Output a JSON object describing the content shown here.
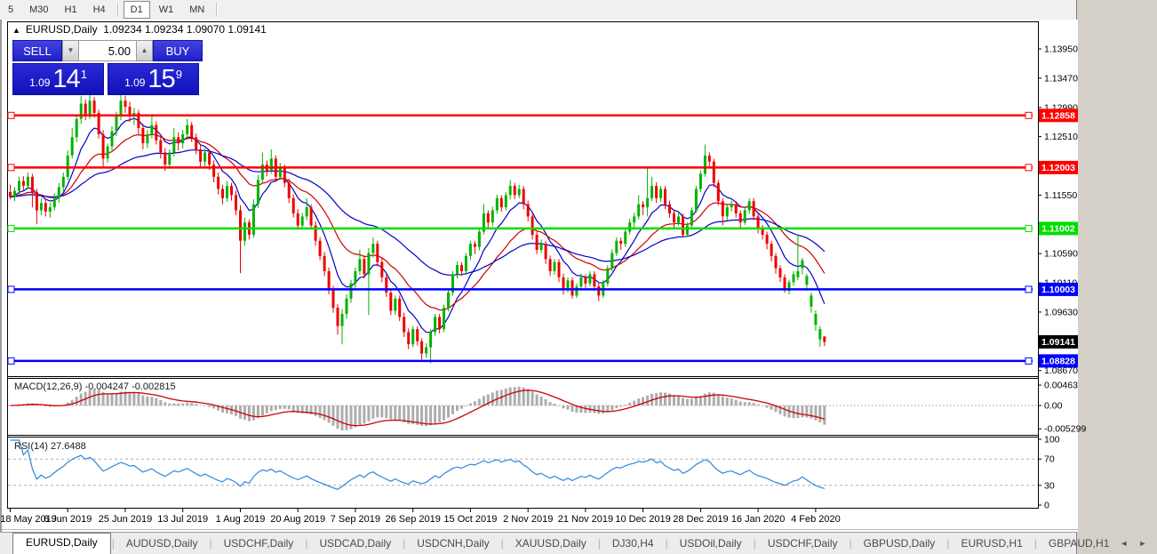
{
  "toolbar": {
    "timeframes": [
      "5",
      "M30",
      "H1",
      "H4",
      "D1",
      "W1",
      "MN"
    ],
    "active": "D1"
  },
  "window": {
    "collapse_glyph": "▲",
    "symbol_title": "EURUSD,Daily",
    "ohlc_text": "1.09234 1.09234 1.09070 1.09141"
  },
  "trade_panel": {
    "sell_label": "SELL",
    "buy_label": "BUY",
    "volume": "5.00",
    "spin_down_glyph": "▼",
    "spin_up_glyph": "▲",
    "sell_price": {
      "prefix": "1.09",
      "big": "14",
      "sup": "1"
    },
    "buy_price": {
      "prefix": "1.09",
      "big": "15",
      "sup": "9"
    }
  },
  "chart_data": {
    "type": "candlestick",
    "symbol": "EURUSD",
    "timeframe": "Daily",
    "colors": {
      "bull": "#00b300",
      "bear": "#ee0000",
      "wick_bull": "#00b300",
      "wick_bear": "#ee0000",
      "ma_fast": "#0000c8",
      "ma_mid": "#cc0000",
      "ma_slow": "#0000c8",
      "macd_hist": "#adadad",
      "macd_signal": "#d00000",
      "rsi_line": "#2e86e0",
      "level_dash": "#b0b0b0",
      "axis_line": "#000000"
    },
    "x_labels": [
      "18 May 2019",
      "6 Jun 2019",
      "25 Jun 2019",
      "13 Jul 2019",
      "1 Aug 2019",
      "20 Aug 2019",
      "7 Sep 2019",
      "26 Sep 2019",
      "15 Oct 2019",
      "2 Nov 2019",
      "21 Nov 2019",
      "10 Dec 2019",
      "28 Dec 2019",
      "16 Jan 2020",
      "4 Feb 2020"
    ],
    "x_label_indices": [
      0,
      13,
      26,
      39,
      52,
      65,
      78,
      91,
      104,
      117,
      130,
      143,
      156,
      169,
      182
    ],
    "y_ticks": [
      {
        "p": 1.1395,
        "t": "1.13950"
      },
      {
        "p": 1.1347,
        "t": "1.13470"
      },
      {
        "p": 1.1299,
        "t": "1.12990"
      },
      {
        "p": 1.1251,
        "t": "1.12510"
      },
      {
        "p": 1.1155,
        "t": "1.11550"
      },
      {
        "p": 1.1059,
        "t": "1.10590"
      },
      {
        "p": 1.1011,
        "t": "1.10110"
      },
      {
        "p": 1.0963,
        "t": "1.09630"
      },
      {
        "p": 1.0867,
        "t": "1.08670"
      }
    ],
    "levels": [
      {
        "price": 1.12858,
        "label": "1.12858",
        "color": "#ff0000"
      },
      {
        "price": 1.12003,
        "label": "1.12003",
        "color": "#ff0000"
      },
      {
        "price": 1.11002,
        "label": "1.11002",
        "color": "#00dd00"
      },
      {
        "price": 1.10003,
        "label": "1.10003",
        "color": "#0000ff"
      },
      {
        "price": 1.08828,
        "label": "1.08828",
        "color": "#0000ff"
      }
    ],
    "current_price": {
      "price": 1.09141,
      "label": "1.09141",
      "bg": "#000000"
    },
    "indicators": {
      "mas": [
        {
          "period": 8,
          "color": "#0000c8"
        },
        {
          "period": 20,
          "color": "#cc0000"
        },
        {
          "period": 45,
          "color": "#0000c8"
        }
      ],
      "macd": {
        "label": "MACD(12,26,9)",
        "values_text": "-0.004247 -0.002815",
        "fast": 12,
        "slow": 26,
        "signal": 9,
        "y_ticks": [
          {
            "v": 0.00463,
            "t": "0.00463"
          },
          {
            "v": 0.0,
            "t": "0.00"
          },
          {
            "v": -0.005299,
            "t": "-0.005299"
          }
        ]
      },
      "rsi": {
        "label": "RSI(14)",
        "value_text": "27.6488",
        "period": 14,
        "levels": [
          70,
          30
        ],
        "y_ticks": [
          {
            "v": 100,
            "t": "100"
          },
          {
            "v": 70,
            "t": "70"
          },
          {
            "v": 30,
            "t": "30"
          },
          {
            "v": 0,
            "t": "0"
          }
        ]
      }
    },
    "candles": [
      [
        1.116,
        1.1172,
        1.1148,
        1.1152
      ],
      [
        1.1152,
        1.1168,
        1.1145,
        1.1162
      ],
      [
        1.1162,
        1.1185,
        1.1155,
        1.1178
      ],
      [
        1.1178,
        1.1186,
        1.1162,
        1.117
      ],
      [
        1.117,
        1.1192,
        1.1165,
        1.1185
      ],
      [
        1.1185,
        1.119,
        1.1135,
        1.116
      ],
      [
        1.116,
        1.1165,
        1.1107,
        1.113
      ],
      [
        1.113,
        1.115,
        1.1122,
        1.1142
      ],
      [
        1.1142,
        1.1148,
        1.112,
        1.1128
      ],
      [
        1.1128,
        1.1142,
        1.1118,
        1.1135
      ],
      [
        1.1135,
        1.1158,
        1.113,
        1.115
      ],
      [
        1.115,
        1.1175,
        1.1142,
        1.1168
      ],
      [
        1.1168,
        1.1192,
        1.116,
        1.1185
      ],
      [
        1.1185,
        1.1228,
        1.118,
        1.122
      ],
      [
        1.122,
        1.1265,
        1.1215,
        1.125
      ],
      [
        1.125,
        1.1288,
        1.1242,
        1.128
      ],
      [
        1.128,
        1.1318,
        1.1272,
        1.1305
      ],
      [
        1.1305,
        1.1312,
        1.1278,
        1.1285
      ],
      [
        1.1285,
        1.132,
        1.128,
        1.131
      ],
      [
        1.131,
        1.1316,
        1.1282,
        1.129
      ],
      [
        1.129,
        1.1295,
        1.1248,
        1.1255
      ],
      [
        1.1255,
        1.1262,
        1.12,
        1.1215
      ],
      [
        1.1215,
        1.124,
        1.1208,
        1.1235
      ],
      [
        1.1235,
        1.1268,
        1.1228,
        1.126
      ],
      [
        1.126,
        1.1292,
        1.1252,
        1.1285
      ],
      [
        1.1285,
        1.1322,
        1.1278,
        1.131
      ],
      [
        1.131,
        1.1318,
        1.129,
        1.13
      ],
      [
        1.13,
        1.1308,
        1.1275,
        1.1285
      ],
      [
        1.1285,
        1.1298,
        1.127,
        1.129
      ],
      [
        1.129,
        1.1295,
        1.1255,
        1.1265
      ],
      [
        1.1265,
        1.1272,
        1.123,
        1.124
      ],
      [
        1.124,
        1.1262,
        1.1232,
        1.1255
      ],
      [
        1.1255,
        1.1285,
        1.1248,
        1.127
      ],
      [
        1.127,
        1.1276,
        1.1238,
        1.1245
      ],
      [
        1.1245,
        1.1252,
        1.1215,
        1.1225
      ],
      [
        1.1225,
        1.1232,
        1.1195,
        1.1205
      ],
      [
        1.1205,
        1.123,
        1.1198,
        1.1225
      ],
      [
        1.1225,
        1.1265,
        1.1218,
        1.125
      ],
      [
        1.125,
        1.1258,
        1.1228,
        1.124
      ],
      [
        1.124,
        1.1262,
        1.1232,
        1.1255
      ],
      [
        1.1255,
        1.128,
        1.1248,
        1.127
      ],
      [
        1.127,
        1.1275,
        1.1242,
        1.125
      ],
      [
        1.125,
        1.1256,
        1.1222,
        1.123
      ],
      [
        1.123,
        1.1238,
        1.12,
        1.121
      ],
      [
        1.121,
        1.1232,
        1.1202,
        1.1225
      ],
      [
        1.1225,
        1.123,
        1.1196,
        1.1205
      ],
      [
        1.1205,
        1.1212,
        1.1176,
        1.1185
      ],
      [
        1.1185,
        1.1192,
        1.1156,
        1.1165
      ],
      [
        1.1165,
        1.1172,
        1.114,
        1.115
      ],
      [
        1.115,
        1.1178,
        1.1144,
        1.117
      ],
      [
        1.117,
        1.1175,
        1.1146,
        1.1155
      ],
      [
        1.1155,
        1.1162,
        1.1122,
        1.113
      ],
      [
        1.113,
        1.1138,
        1.1027,
        1.108
      ],
      [
        1.108,
        1.1118,
        1.1072,
        1.111
      ],
      [
        1.111,
        1.1115,
        1.1082,
        1.109
      ],
      [
        1.109,
        1.1148,
        1.1085,
        1.114
      ],
      [
        1.114,
        1.1188,
        1.1134,
        1.118
      ],
      [
        1.118,
        1.1225,
        1.1174,
        1.1205
      ],
      [
        1.1205,
        1.1212,
        1.1186,
        1.1195
      ],
      [
        1.1195,
        1.123,
        1.119,
        1.1215
      ],
      [
        1.1215,
        1.122,
        1.1178,
        1.1185
      ],
      [
        1.1185,
        1.1208,
        1.118,
        1.12
      ],
      [
        1.12,
        1.1205,
        1.1168,
        1.1175
      ],
      [
        1.1175,
        1.1182,
        1.1142,
        1.115
      ],
      [
        1.115,
        1.1156,
        1.1118,
        1.1125
      ],
      [
        1.1125,
        1.1132,
        1.1098,
        1.1105
      ],
      [
        1.1105,
        1.1126,
        1.11,
        1.112
      ],
      [
        1.112,
        1.115,
        1.1114,
        1.1135
      ],
      [
        1.1135,
        1.114,
        1.1098,
        1.1105
      ],
      [
        1.1105,
        1.1112,
        1.1072,
        1.108
      ],
      [
        1.108,
        1.1086,
        1.1048,
        1.1055
      ],
      [
        1.1055,
        1.1062,
        1.1022,
        1.103
      ],
      [
        1.103,
        1.1036,
        1.0992,
        1.1
      ],
      [
        1.1,
        1.1006,
        1.0962,
        1.097
      ],
      [
        1.097,
        1.0976,
        1.0926,
        1.094
      ],
      [
        1.094,
        1.0968,
        1.091,
        1.096
      ],
      [
        1.096,
        1.0992,
        1.0952,
        1.0985
      ],
      [
        1.0985,
        1.1016,
        1.0978,
        1.101
      ],
      [
        1.101,
        1.1036,
        1.1002,
        1.103
      ],
      [
        1.103,
        1.1065,
        1.1024,
        1.105
      ],
      [
        1.105,
        1.1056,
        1.1018,
        1.1025
      ],
      [
        1.1025,
        1.1068,
        1.0958,
        1.106
      ],
      [
        1.106,
        1.1085,
        1.1052,
        1.1075
      ],
      [
        1.1075,
        1.108,
        1.1038,
        1.1045
      ],
      [
        1.1045,
        1.1052,
        1.1012,
        1.102
      ],
      [
        1.102,
        1.1026,
        1.0988,
        1.0995
      ],
      [
        1.0995,
        1.1,
        1.0958,
        1.0965
      ],
      [
        1.0965,
        1.099,
        1.0958,
        1.0985
      ],
      [
        1.0985,
        1.099,
        1.0948,
        1.0955
      ],
      [
        1.0955,
        1.0962,
        1.0922,
        1.093
      ],
      [
        1.093,
        1.0936,
        1.0902,
        1.091
      ],
      [
        1.091,
        1.094,
        1.0905,
        1.0935
      ],
      [
        1.0935,
        1.094,
        1.0908,
        1.0915
      ],
      [
        1.0915,
        1.092,
        1.0885,
        1.0895
      ],
      [
        1.0895,
        1.0912,
        1.0888,
        1.0905
      ],
      [
        1.0905,
        1.0935,
        1.0879,
        1.093
      ],
      [
        1.093,
        1.096,
        1.0924,
        1.0955
      ],
      [
        1.0955,
        1.096,
        1.0928,
        1.0935
      ],
      [
        1.0935,
        1.0975,
        1.093,
        1.097
      ],
      [
        1.097,
        1.1,
        1.0964,
        1.0995
      ],
      [
        1.0995,
        1.103,
        1.099,
        1.1025
      ],
      [
        1.1025,
        1.1046,
        1.1018,
        1.104
      ],
      [
        1.104,
        1.1045,
        1.1022,
        1.103
      ],
      [
        1.103,
        1.106,
        1.1024,
        1.1055
      ],
      [
        1.1055,
        1.108,
        1.1048,
        1.1075
      ],
      [
        1.1075,
        1.108,
        1.1058,
        1.107
      ],
      [
        1.107,
        1.11,
        1.1064,
        1.1095
      ],
      [
        1.1095,
        1.114,
        1.109,
        1.1125
      ],
      [
        1.1125,
        1.113,
        1.1102,
        1.111
      ],
      [
        1.111,
        1.1136,
        1.1104,
        1.113
      ],
      [
        1.113,
        1.1156,
        1.1124,
        1.115
      ],
      [
        1.115,
        1.1155,
        1.1128,
        1.1135
      ],
      [
        1.1135,
        1.116,
        1.113,
        1.1155
      ],
      [
        1.1155,
        1.118,
        1.1148,
        1.117
      ],
      [
        1.117,
        1.1175,
        1.1148,
        1.1155
      ],
      [
        1.1155,
        1.1172,
        1.115,
        1.1165
      ],
      [
        1.1165,
        1.117,
        1.1132,
        1.114
      ],
      [
        1.114,
        1.1146,
        1.1112,
        1.112
      ],
      [
        1.112,
        1.1126,
        1.1082,
        1.109
      ],
      [
        1.109,
        1.1096,
        1.1058,
        1.1065
      ],
      [
        1.1065,
        1.1082,
        1.106,
        1.1075
      ],
      [
        1.1075,
        1.108,
        1.1042,
        1.105
      ],
      [
        1.105,
        1.1056,
        1.1022,
        1.103
      ],
      [
        1.103,
        1.105,
        1.1024,
        1.1045
      ],
      [
        1.1045,
        1.105,
        1.1012,
        1.102
      ],
      [
        1.102,
        1.1026,
        1.0992,
        1.1
      ],
      [
        1.1,
        1.102,
        1.0995,
        1.1015
      ],
      [
        1.1015,
        1.102,
        1.0985,
        1.099
      ],
      [
        1.099,
        1.101,
        1.0986,
        1.1005
      ],
      [
        1.1005,
        1.1026,
        1.1,
        1.102
      ],
      [
        1.102,
        1.1025,
        1.1002,
        1.101
      ],
      [
        1.101,
        1.103,
        1.1005,
        1.1025
      ],
      [
        1.1025,
        1.103,
        1.0998,
        1.1005
      ],
      [
        1.1005,
        1.101,
        1.0981,
        1.099
      ],
      [
        1.099,
        1.1016,
        1.0986,
        1.101
      ],
      [
        1.101,
        1.104,
        1.1005,
        1.1035
      ],
      [
        1.1035,
        1.1066,
        1.103,
        1.106
      ],
      [
        1.106,
        1.1086,
        1.1055,
        1.108
      ],
      [
        1.108,
        1.1085,
        1.1065,
        1.1075
      ],
      [
        1.1075,
        1.11,
        1.107,
        1.1095
      ],
      [
        1.1095,
        1.1116,
        1.109,
        1.111
      ],
      [
        1.111,
        1.1126,
        1.1102,
        1.112
      ],
      [
        1.112,
        1.1155,
        1.1115,
        1.114
      ],
      [
        1.114,
        1.1145,
        1.1122,
        1.1135
      ],
      [
        1.1135,
        1.12,
        1.112,
        1.115
      ],
      [
        1.115,
        1.1185,
        1.1145,
        1.117
      ],
      [
        1.117,
        1.1176,
        1.1142,
        1.115
      ],
      [
        1.115,
        1.117,
        1.1144,
        1.1165
      ],
      [
        1.1165,
        1.117,
        1.1132,
        1.114
      ],
      [
        1.114,
        1.1146,
        1.1118,
        1.1125
      ],
      [
        1.1125,
        1.113,
        1.11,
        1.111
      ],
      [
        1.111,
        1.1128,
        1.1105,
        1.112
      ],
      [
        1.112,
        1.1125,
        1.1085,
        1.109
      ],
      [
        1.109,
        1.111,
        1.1086,
        1.1105
      ],
      [
        1.1105,
        1.1135,
        1.11,
        1.113
      ],
      [
        1.113,
        1.117,
        1.1126,
        1.1165
      ],
      [
        1.1165,
        1.1196,
        1.116,
        1.119
      ],
      [
        1.119,
        1.1238,
        1.1185,
        1.122
      ],
      [
        1.122,
        1.1225,
        1.1202,
        1.121
      ],
      [
        1.121,
        1.1215,
        1.1168,
        1.1175
      ],
      [
        1.1175,
        1.118,
        1.1138,
        1.1145
      ],
      [
        1.1145,
        1.115,
        1.1105,
        1.112
      ],
      [
        1.112,
        1.114,
        1.1114,
        1.1135
      ],
      [
        1.1135,
        1.1146,
        1.1128,
        1.114
      ],
      [
        1.114,
        1.1145,
        1.1118,
        1.1125
      ],
      [
        1.1125,
        1.113,
        1.1102,
        1.111
      ],
      [
        1.111,
        1.1135,
        1.1106,
        1.113
      ],
      [
        1.113,
        1.115,
        1.1124,
        1.1145
      ],
      [
        1.1145,
        1.115,
        1.1114,
        1.112
      ],
      [
        1.112,
        1.1125,
        1.1092,
        1.11
      ],
      [
        1.11,
        1.1106,
        1.1082,
        1.109
      ],
      [
        1.109,
        1.1095,
        1.1066,
        1.1075
      ],
      [
        1.1075,
        1.108,
        1.1046,
        1.1055
      ],
      [
        1.1055,
        1.106,
        1.1026,
        1.1035
      ],
      [
        1.1035,
        1.104,
        1.1012,
        1.102
      ],
      [
        1.102,
        1.1025,
        1.0995,
        1.1
      ],
      [
        1.0998,
        1.1016,
        1.0992,
        1.1012
      ],
      [
        1.1012,
        1.103,
        1.1006,
        1.1025
      ],
      [
        1.102,
        1.109,
        1.1015,
        1.103
      ],
      [
        1.1035,
        1.1052,
        1.1025,
        1.1048
      ],
      [
        1.1008,
        1.1026,
        1.0998,
        1.1022
      ],
      [
        1.0972,
        1.0995,
        1.0962,
        1.099
      ],
      [
        1.0942,
        1.0966,
        1.0932,
        1.096
      ],
      [
        1.0918,
        1.094,
        1.0906,
        1.0935
      ],
      [
        1.0923,
        1.0923,
        1.0907,
        1.0914
      ]
    ]
  },
  "tabs": {
    "items": [
      "EURUSD,Daily",
      "AUDUSD,Daily",
      "USDCHF,Daily",
      "USDCAD,Daily",
      "USDCNH,Daily",
      "XAUUSD,Daily",
      "DJ30,H4",
      "USDOil,Daily",
      "USDCHF,Daily",
      "GBPUSD,Daily",
      "EURUSD,H1",
      "GBPAUD,H1"
    ],
    "active_index": 0,
    "left_arrow": "◄",
    "right_arrow": "►"
  }
}
